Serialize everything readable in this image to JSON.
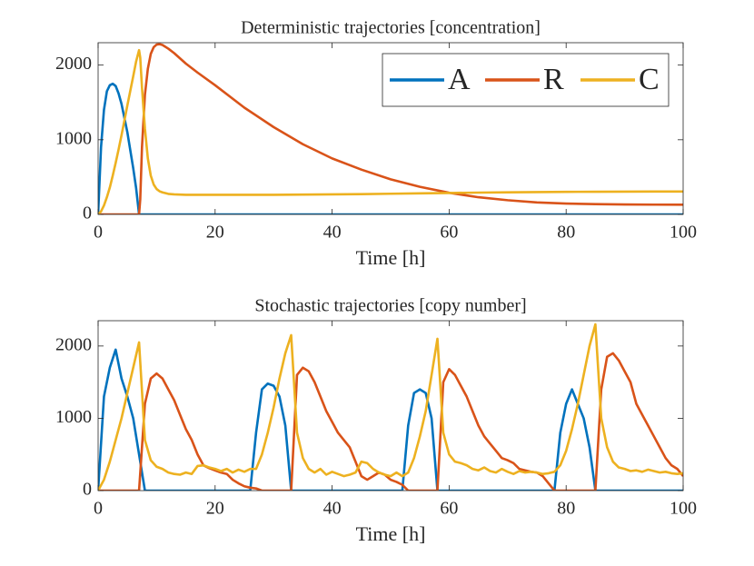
{
  "chart_data": [
    {
      "type": "line",
      "title": "Deterministic trajectories [concentration]",
      "xlabel": "Time [h]",
      "x": [
        0,
        0.5,
        1,
        1.5,
        2,
        2.5,
        3,
        3.5,
        4,
        5,
        6,
        6.5,
        7,
        7.2,
        7.5,
        8,
        8.5,
        9,
        9.5,
        10,
        10.5,
        11,
        12,
        13,
        14,
        15,
        17,
        20,
        25,
        30,
        35,
        40,
        45,
        50,
        55,
        60,
        65,
        70,
        75,
        80,
        85,
        90,
        95,
        100
      ],
      "series": [
        {
          "name": "A",
          "color": "#0072bd",
          "values": [
            0,
            900,
            1400,
            1650,
            1730,
            1750,
            1720,
            1620,
            1480,
            1100,
            620,
            350,
            0,
            0,
            0,
            0,
            0,
            0,
            0,
            0,
            0,
            0,
            0,
            0,
            0,
            0,
            0,
            0,
            0,
            0,
            0,
            0,
            0,
            0,
            0,
            0,
            0,
            0,
            0,
            0,
            0,
            0,
            0,
            0
          ]
        },
        {
          "name": "R",
          "color": "#d95319",
          "values": [
            0,
            0,
            0,
            0,
            0,
            0,
            0,
            0,
            0,
            0,
            0,
            0,
            0,
            200,
            900,
            1600,
            1950,
            2150,
            2240,
            2275,
            2280,
            2270,
            2220,
            2160,
            2090,
            2020,
            1900,
            1730,
            1430,
            1170,
            940,
            750,
            600,
            470,
            370,
            290,
            230,
            190,
            160,
            145,
            138,
            133,
            131,
            130
          ]
        },
        {
          "name": "C",
          "color": "#edb120",
          "values": [
            0,
            40,
            120,
            230,
            360,
            520,
            690,
            870,
            1060,
            1460,
            1850,
            2050,
            2200,
            2100,
            1700,
            1150,
            750,
            520,
            400,
            340,
            310,
            295,
            275,
            268,
            265,
            263,
            262,
            262,
            262,
            263,
            265,
            268,
            272,
            277,
            282,
            287,
            292,
            296,
            299,
            302,
            304,
            305,
            306,
            306
          ]
        }
      ],
      "xlim": [
        0,
        100
      ],
      "xticks": [
        0,
        20,
        40,
        60,
        80,
        100
      ],
      "ylim": [
        0,
        2300
      ],
      "yticks": [
        0,
        1000,
        2000
      ],
      "legend": "northeast"
    },
    {
      "type": "line",
      "title": "Stochastic trajectories [copy number]",
      "xlabel": "Time [h]",
      "x": [
        0,
        1,
        2,
        3,
        4,
        5,
        6,
        7,
        8,
        9,
        10,
        11,
        12,
        13,
        14,
        15,
        16,
        17,
        18,
        19,
        20,
        21,
        22,
        23,
        24,
        25,
        26,
        27,
        28,
        29,
        30,
        31,
        32,
        33,
        34,
        35,
        36,
        37,
        38,
        39,
        40,
        41,
        42,
        43,
        44,
        45,
        46,
        47,
        48,
        49,
        50,
        51,
        52,
        53,
        54,
        55,
        56,
        57,
        58,
        59,
        60,
        61,
        62,
        63,
        64,
        65,
        66,
        67,
        68,
        69,
        70,
        71,
        72,
        73,
        74,
        75,
        76,
        77,
        78,
        79,
        80,
        81,
        82,
        83,
        84,
        85,
        86,
        87,
        88,
        89,
        90,
        91,
        92,
        93,
        94,
        95,
        96,
        97,
        98,
        99,
        100
      ],
      "series": [
        {
          "name": "A",
          "color": "#0072bd",
          "values": [
            0,
            1300,
            1700,
            1950,
            1550,
            1300,
            1000,
            500,
            0,
            0,
            0,
            0,
            0,
            0,
            0,
            0,
            0,
            0,
            0,
            0,
            0,
            0,
            0,
            0,
            0,
            0,
            0,
            800,
            1400,
            1480,
            1450,
            1300,
            900,
            0,
            0,
            0,
            0,
            0,
            0,
            0,
            0,
            0,
            0,
            0,
            0,
            0,
            0,
            0,
            0,
            0,
            0,
            0,
            0,
            900,
            1350,
            1400,
            1350,
            1000,
            0,
            0,
            0,
            0,
            0,
            0,
            0,
            0,
            0,
            0,
            0,
            0,
            0,
            0,
            0,
            0,
            0,
            0,
            0,
            0,
            0,
            800,
            1200,
            1400,
            1200,
            1000,
            600,
            0,
            0,
            0,
            0,
            0,
            0,
            0,
            0,
            0,
            0,
            0,
            0,
            0,
            0,
            0,
            0
          ]
        },
        {
          "name": "R",
          "color": "#d95319",
          "values": [
            0,
            0,
            0,
            0,
            0,
            0,
            0,
            0,
            1200,
            1550,
            1620,
            1550,
            1400,
            1250,
            1050,
            850,
            700,
            500,
            350,
            310,
            280,
            250,
            230,
            150,
            100,
            60,
            40,
            30,
            0,
            0,
            0,
            0,
            0,
            0,
            1600,
            1700,
            1650,
            1500,
            1300,
            1100,
            950,
            800,
            700,
            600,
            400,
            200,
            150,
            200,
            250,
            220,
            150,
            120,
            80,
            0,
            0,
            0,
            0,
            0,
            0,
            1500,
            1680,
            1600,
            1450,
            1300,
            1100,
            900,
            750,
            650,
            550,
            450,
            420,
            380,
            300,
            280,
            260,
            250,
            200,
            100,
            0,
            0,
            0,
            0,
            0,
            0,
            0,
            0,
            1400,
            1850,
            1900,
            1800,
            1650,
            1500,
            1200,
            1050,
            900,
            750,
            600,
            450,
            350,
            300,
            200
          ]
        },
        {
          "name": "C",
          "color": "#edb120",
          "values": [
            0,
            150,
            400,
            700,
            1000,
            1350,
            1700,
            2050,
            700,
            420,
            330,
            300,
            250,
            230,
            220,
            250,
            230,
            340,
            350,
            320,
            300,
            270,
            300,
            250,
            290,
            260,
            300,
            300,
            500,
            800,
            1150,
            1550,
            1900,
            2150,
            800,
            450,
            300,
            250,
            300,
            220,
            260,
            230,
            200,
            220,
            250,
            400,
            380,
            300,
            250,
            220,
            200,
            250,
            200,
            250,
            450,
            750,
            1100,
            1600,
            2100,
            800,
            500,
            400,
            380,
            350,
            300,
            280,
            320,
            270,
            250,
            300,
            260,
            230,
            270,
            250,
            260,
            250,
            230,
            240,
            260,
            350,
            550,
            850,
            1200,
            1600,
            2000,
            2300,
            1000,
            600,
            400,
            320,
            300,
            270,
            280,
            260,
            290,
            270,
            250,
            260,
            240,
            230,
            240
          ]
        }
      ],
      "xlim": [
        0,
        100
      ],
      "xticks": [
        0,
        20,
        40,
        60,
        80,
        100
      ],
      "ylim": [
        0,
        2350
      ],
      "yticks": [
        0,
        1000,
        2000
      ]
    }
  ]
}
